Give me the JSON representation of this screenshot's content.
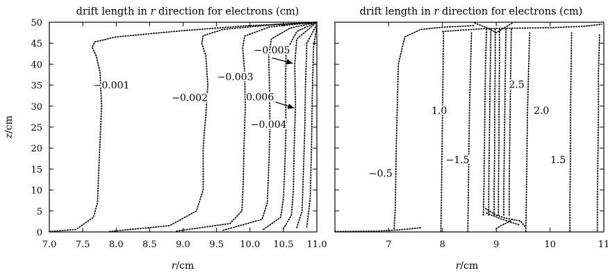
{
  "chart_data": [
    {
      "type": "contour",
      "title_pre": "drift length in ",
      "title_var": "r",
      "title_post": " direction for electrons (cm)",
      "xlabel_var": "r",
      "xlabel_unit": "/cm",
      "ylabel_var": "z",
      "ylabel_unit": "/cm",
      "xlim": [
        7.0,
        11.0
      ],
      "ylim": [
        0,
        50
      ],
      "xticks": [
        "7.0",
        "7.5",
        "8.0",
        "8.5",
        "9.0",
        "9.5",
        "10.0",
        "10.5",
        "11.0"
      ],
      "yticks": [
        "0",
        "5",
        "10",
        "15",
        "20",
        "25",
        "30",
        "35",
        "40",
        "45",
        "50"
      ],
      "contour_labels": [
        {
          "text": "−0.001",
          "x": 7.93,
          "z": 35.0
        },
        {
          "text": "−0.002",
          "x": 9.1,
          "z": 32.0
        },
        {
          "text": "−0.003",
          "x": 9.78,
          "z": 37.0
        },
        {
          "text": "−0.005",
          "x": 10.33,
          "z": 43.4
        },
        {
          "text": "0.006",
          "x": 10.15,
          "z": 32.2
        },
        {
          "text": "−0.004",
          "x": 10.28,
          "z": 25.7
        }
      ],
      "arrows": [
        {
          "from": [
            10.33,
            41.5
          ],
          "to": [
            10.64,
            40.2
          ]
        },
        {
          "from": [
            10.38,
            31.0
          ],
          "to": [
            10.66,
            29.5
          ]
        }
      ],
      "contours": [
        {
          "x": [
            7.0,
            7.4,
            7.66,
            7.72,
            7.74,
            7.76,
            7.78,
            7.76,
            7.7,
            7.64,
            7.68,
            8.0,
            9.0,
            10.0,
            10.8,
            11.0
          ],
          "z": [
            0.1,
            0.6,
            3.5,
            7.0,
            15.0,
            22.0,
            30.0,
            38.0,
            42.0,
            44.0,
            45.3,
            46.5,
            48.0,
            49.2,
            49.7,
            50.0
          ]
        },
        {
          "x": [
            7.9,
            8.8,
            9.2,
            9.3,
            9.3,
            9.34,
            9.37,
            9.34,
            9.28,
            9.3,
            9.6,
            10.4,
            11.0
          ],
          "z": [
            0.1,
            1.5,
            5.0,
            10.0,
            20.0,
            28.0,
            35.0,
            42.0,
            45.0,
            46.8,
            48.3,
            49.5,
            50.0
          ]
        },
        {
          "x": [
            8.9,
            9.7,
            9.88,
            9.9,
            9.91,
            9.93,
            9.92,
            9.89,
            9.92,
            10.3,
            11.0
          ],
          "z": [
            0.2,
            2.0,
            5.0,
            12.0,
            20.0,
            30.0,
            38.0,
            44.0,
            46.7,
            48.9,
            50.0
          ]
        },
        {
          "x": [
            9.6,
            10.18,
            10.26,
            10.28,
            10.3,
            10.29,
            10.28,
            10.32,
            10.6,
            11.0
          ],
          "z": [
            0.4,
            3.0,
            7.0,
            15.0,
            25.0,
            35.0,
            42.0,
            46.0,
            48.6,
            50.0
          ]
        },
        {
          "x": [
            10.2,
            10.46,
            10.5,
            10.52,
            10.54,
            10.53,
            10.54,
            10.7,
            11.0
          ],
          "z": [
            0.6,
            3.5,
            8.0,
            15.0,
            25.0,
            35.0,
            43.0,
            47.8,
            50.0
          ]
        },
        {
          "x": [
            10.5,
            10.62,
            10.65,
            10.66,
            10.68,
            10.67,
            10.7,
            11.0
          ],
          "z": [
            0.8,
            4.0,
            10.0,
            20.0,
            30.0,
            40.0,
            46.0,
            50.0
          ]
        },
        {
          "x": [
            10.7,
            10.78,
            10.8,
            10.82,
            10.83,
            10.85,
            11.0
          ],
          "z": [
            1.0,
            5.0,
            15.0,
            25.0,
            35.0,
            45.0,
            49.5
          ]
        },
        {
          "x": [
            10.85,
            10.9,
            10.92,
            10.93,
            10.95,
            11.0
          ],
          "z": [
            1.2,
            8.0,
            20.0,
            32.0,
            44.0,
            49.0
          ]
        }
      ]
    },
    {
      "type": "contour",
      "title_pre": "drift length in ",
      "title_var": "r",
      "title_post": " direction for electrons (cm)",
      "xlabel_var": "r",
      "xlabel_unit": "/cm",
      "xlim": [
        6.0,
        11.0
      ],
      "ylim": [
        0,
        50
      ],
      "xticks": [
        "7",
        "8",
        "9",
        "10",
        "11"
      ],
      "contour_labels": [
        {
          "text": "−0.5",
          "x": 6.85,
          "z": 14.0
        },
        {
          "text": "1.0",
          "x": 7.94,
          "z": 29.0
        },
        {
          "text": "−1.5",
          "x": 8.28,
          "z": 17.2
        },
        {
          "text": "2.5",
          "x": 9.38,
          "z": 35.2
        },
        {
          "text": "2.0",
          "x": 9.84,
          "z": 29.0
        },
        {
          "text": "1.5",
          "x": 10.15,
          "z": 17.2
        }
      ],
      "contours": [
        {
          "x": [
            6.0,
            6.8,
            7.2,
            7.6
          ],
          "z": [
            0.1,
            0.2,
            0.5,
            1.0
          ]
        },
        {
          "x": [
            7.1,
            7.12,
            7.13,
            7.14,
            7.16,
            7.18,
            7.3,
            7.6,
            8.0,
            8.6
          ],
          "z": [
            0.8,
            5.0,
            12.0,
            20.0,
            30.0,
            40.0,
            46.5,
            48.3,
            48.8,
            49.2
          ]
        },
        {
          "x": [
            7.97,
            7.98,
            7.99,
            8.0,
            8.01,
            8.02
          ],
          "z": [
            0.1,
            8.0,
            18.0,
            28.0,
            38.0,
            47.8
          ]
        },
        {
          "x": [
            8.47,
            8.48,
            8.49,
            8.5,
            8.52,
            8.54
          ],
          "z": [
            0.1,
            8.0,
            18.0,
            28.0,
            38.0,
            47.8
          ]
        },
        {
          "x": [
            8.76,
            8.77,
            8.78,
            8.79,
            8.8,
            8.82
          ],
          "z": [
            4.0,
            10.0,
            20.0,
            30.0,
            40.0,
            48.5
          ]
        },
        {
          "x": [
            8.86,
            8.86,
            8.87,
            8.88,
            8.89,
            8.9
          ],
          "z": [
            4.0,
            10.0,
            20.0,
            30.0,
            40.0,
            48.5
          ]
        },
        {
          "x": [
            8.96,
            8.96,
            8.97,
            8.97,
            8.98,
            8.98
          ],
          "z": [
            4.0,
            10.0,
            20.0,
            30.0,
            40.0,
            48.5
          ]
        },
        {
          "x": [
            9.04,
            9.04,
            9.05,
            9.05,
            9.06,
            9.06
          ],
          "z": [
            4.0,
            10.0,
            20.0,
            30.0,
            40.0,
            48.5
          ]
        },
        {
          "x": [
            9.14,
            9.14,
            9.15,
            9.16,
            9.17,
            9.18
          ],
          "z": [
            4.0,
            10.0,
            20.0,
            30.0,
            40.0,
            48.5
          ]
        },
        {
          "x": [
            9.24,
            9.24,
            9.25,
            9.26,
            9.27,
            9.28
          ],
          "z": [
            4.0,
            10.0,
            20.0,
            30.0,
            40.0,
            48.5
          ]
        },
        {
          "x": [
            8.8,
            9.0,
            9.2,
            9.45,
            9.55
          ],
          "z": [
            5.6,
            4.0,
            3.2,
            2.6,
            1.0
          ]
        },
        {
          "x": [
            8.82,
            9.05,
            9.25,
            9.45
          ],
          "z": [
            4.5,
            3.3,
            2.4,
            1.6
          ]
        },
        {
          "x": [
            9.0,
            9.1,
            9.2,
            9.3
          ],
          "z": [
            0.8,
            1.6,
            2.2,
            3.0
          ]
        },
        {
          "x": [
            9.55,
            9.56,
            9.57,
            9.58,
            9.6,
            9.62
          ],
          "z": [
            0.2,
            8.0,
            18.0,
            28.0,
            38.0,
            47.5
          ]
        },
        {
          "x": [
            10.37,
            10.37,
            10.38,
            10.38,
            10.39,
            10.4
          ],
          "z": [
            0.2,
            8.0,
            18.0,
            28.0,
            38.0,
            47.5
          ]
        },
        {
          "x": [
            10.88,
            10.88,
            10.89,
            10.9,
            10.9,
            10.92
          ],
          "z": [
            0.3,
            8.0,
            18.0,
            28.0,
            38.0,
            47.0
          ]
        },
        {
          "x": [
            8.0,
            8.8,
            9.4,
            10.0,
            10.6,
            10.96
          ],
          "z": [
            47.8,
            48.5,
            48.6,
            48.7,
            49.0,
            49.5
          ]
        },
        {
          "x": [
            8.6,
            8.8,
            9.0,
            9.3
          ],
          "z": [
            49.8,
            48.8,
            47.5,
            49.8
          ]
        }
      ]
    }
  ]
}
